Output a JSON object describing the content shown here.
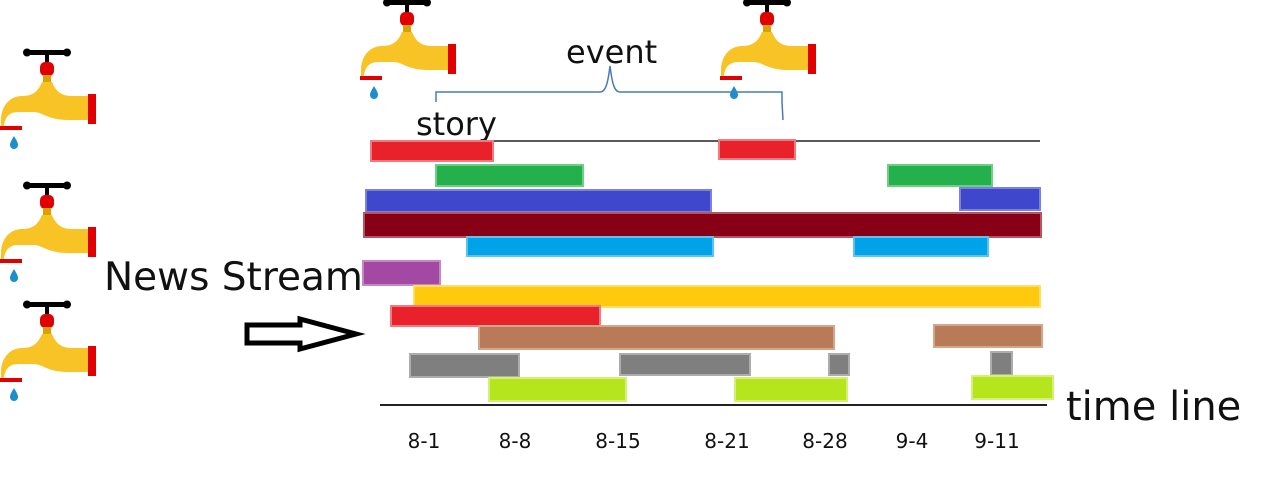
{
  "labels": {
    "event": "event",
    "story": "story",
    "news_stream": "News Stream",
    "time_line": "time line"
  },
  "timeline": {
    "ticks": [
      "8-1",
      "8-8",
      "8-15",
      "8-21",
      "8-28",
      "9-4",
      "9-11"
    ]
  },
  "icons": {
    "faucet": "faucet-icon",
    "arrow": "right-arrow-icon"
  },
  "colors": {
    "red": "#e8212a",
    "green": "#24b04a",
    "blue": "#3f48cc",
    "darkred": "#880015",
    "skyblue": "#00a2e8",
    "purple": "#a349a4",
    "yellow": "#ffc90e",
    "brown": "#b97a57",
    "gray": "#7f7f7f",
    "lime": "#b5e61d",
    "faucet_body": "#f7c325",
    "faucet_handle": "#e00000",
    "drop": "#1a8fc9",
    "brace": "#4a7ab8"
  }
}
